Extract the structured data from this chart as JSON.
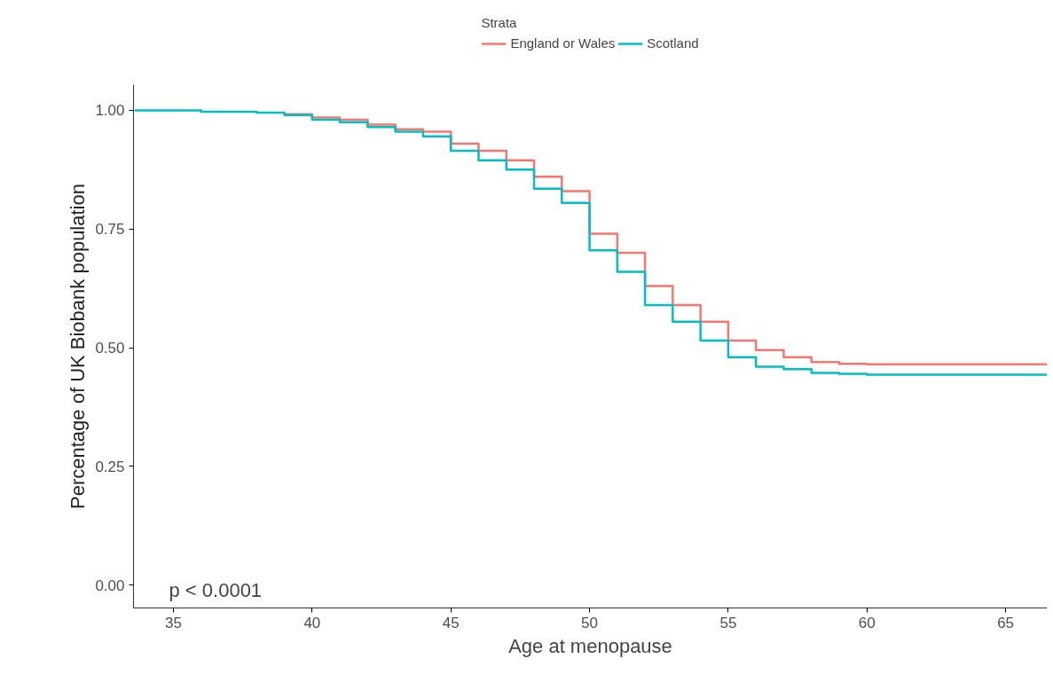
{
  "chart_data": {
    "type": "step",
    "xlabel": "Age at menopause",
    "ylabel": "Percentage of UK Biobank population",
    "legend_title": "Strata",
    "x": [
      33.6,
      36,
      38,
      39,
      40,
      41,
      42,
      43,
      44,
      45,
      46,
      47,
      48,
      49,
      50,
      51,
      52,
      53,
      54,
      55,
      56,
      57,
      58,
      59,
      60,
      66.5
    ],
    "series": [
      {
        "name": "England or Wales",
        "color": "#f8766d",
        "values": [
          null,
          null,
          null,
          0.992,
          0.985,
          0.98,
          0.97,
          0.96,
          0.955,
          0.93,
          0.915,
          0.895,
          0.86,
          0.83,
          0.74,
          0.7,
          0.63,
          0.59,
          0.555,
          0.515,
          0.495,
          0.48,
          0.47,
          0.466,
          0.465,
          0.465
        ]
      },
      {
        "name": "Scotland",
        "color": "#00bfc4",
        "values": [
          1.0,
          0.997,
          0.995,
          0.99,
          0.98,
          0.975,
          0.965,
          0.955,
          0.945,
          0.915,
          0.895,
          0.875,
          0.835,
          0.805,
          0.705,
          0.66,
          0.59,
          0.555,
          0.515,
          0.48,
          0.46,
          0.455,
          0.447,
          0.445,
          0.443,
          0.443
        ]
      }
    ],
    "xlim": [
      33.56,
      66.5
    ],
    "ylim": [
      -0.048,
      1.054
    ],
    "xticks": [
      35,
      40,
      45,
      50,
      55,
      60,
      65
    ],
    "yticks": [
      {
        "value": 0,
        "label": "0.00"
      },
      {
        "value": 0.25,
        "label": "0.25"
      },
      {
        "value": 0.5,
        "label": "0.50"
      },
      {
        "value": 0.75,
        "label": "0.75"
      },
      {
        "value": 1,
        "label": "1.00"
      }
    ],
    "annotations": [
      "p < 0.0001"
    ],
    "grid": false,
    "legend": "top",
    "line_style": "solid",
    "marker": "none"
  }
}
